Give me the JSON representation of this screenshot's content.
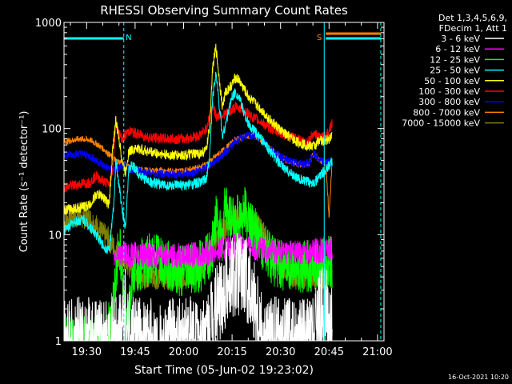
{
  "chart_data": {
    "type": "line",
    "title": "RHESSI Observing Summary Count Rates",
    "xlabel": "Start Time (05-Jun-02 19:23:02)",
    "ylabel": "Count Rate (s⁻¹ detector⁻¹)",
    "yscale": "log",
    "ylim": [
      1,
      1000
    ],
    "xlim_minutes": [
      23,
      122
    ],
    "x_tick_labels": [
      "19:30",
      "19:45",
      "20:00",
      "20:15",
      "20:30",
      "20:45",
      "21:00"
    ],
    "x_tick_minutes": [
      30,
      45,
      60,
      75,
      90,
      105,
      120
    ],
    "y_tick_labels": [
      "1",
      "10",
      "100",
      "1000"
    ],
    "y_tick_values": [
      1,
      10,
      100,
      1000
    ],
    "legend_header": [
      "Det 1,3,4,5,6,9,",
      "FDecim 1, Att 1"
    ],
    "legend_placement": "right",
    "footer_date": "16-Oct-2021 10:20",
    "flags": {
      "night_bars_cyan": [
        {
          "from": 23,
          "to": 41.5
        },
        {
          "from": 104,
          "to": 121
        }
      ],
      "saa_bar_orange": {
        "from": 104,
        "to": 121
      },
      "flag_labels": [
        {
          "text": "N",
          "minute": 43
        },
        {
          "text": "S",
          "minute": 102
        }
      ],
      "dashed_lines_cyan_minutes": [
        41.5,
        121
      ],
      "solid_lines_cyan_minutes": [
        103.5
      ]
    },
    "series": [
      {
        "name": "3 - 6 keV",
        "color": "#ffffff",
        "points": [
          [
            23,
            1
          ],
          [
            38,
            1
          ],
          [
            40,
            1
          ],
          [
            41,
            1.5
          ],
          [
            42,
            2
          ],
          [
            43,
            1.3
          ],
          [
            44,
            1
          ],
          [
            55,
            1
          ],
          [
            67,
            1
          ],
          [
            69,
            1.6
          ],
          [
            71,
            2.5
          ],
          [
            73,
            3.5
          ],
          [
            75,
            4
          ],
          [
            77,
            4.5
          ],
          [
            79,
            4
          ],
          [
            81,
            3
          ],
          [
            83,
            2
          ],
          [
            85,
            1
          ],
          [
            100,
            1
          ],
          [
            101,
            1.3
          ],
          [
            102,
            1.8
          ],
          [
            104,
            2
          ],
          [
            105,
            1.6
          ],
          [
            106,
            1.2
          ]
        ]
      },
      {
        "name": "6 - 12 keV",
        "color": "#ff00ff",
        "points": [
          [
            38.5,
            6
          ],
          [
            40,
            6.5
          ],
          [
            45,
            6.5
          ],
          [
            55,
            6.3
          ],
          [
            65,
            6.5
          ],
          [
            70,
            7
          ],
          [
            73,
            7.5
          ],
          [
            78,
            8
          ],
          [
            82,
            7.5
          ],
          [
            88,
            7
          ],
          [
            92,
            7
          ],
          [
            96,
            6.8
          ],
          [
            100,
            7
          ],
          [
            104,
            7.2
          ],
          [
            106,
            7.5
          ]
        ]
      },
      {
        "name": "12 - 25 keV",
        "color": "#00ff00",
        "points": [
          [
            23,
            1
          ],
          [
            34,
            1
          ],
          [
            36,
            1
          ],
          [
            38,
            2
          ],
          [
            40,
            8
          ],
          [
            41,
            5
          ],
          [
            42,
            1
          ],
          [
            45,
            5
          ],
          [
            50,
            6
          ],
          [
            55,
            5
          ],
          [
            60,
            4.5
          ],
          [
            65,
            5
          ],
          [
            68,
            6
          ],
          [
            69,
            8
          ],
          [
            70,
            15
          ],
          [
            71,
            11
          ],
          [
            72,
            10
          ],
          [
            73,
            19
          ],
          [
            74,
            13
          ],
          [
            76,
            13
          ],
          [
            77,
            15
          ],
          [
            79,
            16
          ],
          [
            81,
            12
          ],
          [
            84,
            8
          ],
          [
            87,
            6
          ],
          [
            90,
            5
          ],
          [
            95,
            5
          ],
          [
            100,
            5
          ],
          [
            103,
            5.5
          ],
          [
            106,
            5.5
          ]
        ]
      },
      {
        "name": "25 - 50 keV",
        "color": "#00ffff",
        "points": [
          [
            23,
            11
          ],
          [
            26,
            13
          ],
          [
            29,
            14
          ],
          [
            31,
            12
          ],
          [
            33,
            10
          ],
          [
            35,
            8
          ],
          [
            37,
            7
          ],
          [
            38.5,
            20
          ],
          [
            39,
            50
          ],
          [
            40,
            30
          ],
          [
            41,
            17
          ],
          [
            42,
            12
          ],
          [
            43,
            40
          ],
          [
            44,
            45
          ],
          [
            47,
            35
          ],
          [
            50,
            31
          ],
          [
            55,
            29
          ],
          [
            60,
            29
          ],
          [
            65,
            31
          ],
          [
            67,
            33
          ],
          [
            68,
            50
          ],
          [
            69,
            200
          ],
          [
            70,
            340
          ],
          [
            71,
            170
          ],
          [
            72,
            85
          ],
          [
            73,
            110
          ],
          [
            74,
            150
          ],
          [
            75,
            200
          ],
          [
            76,
            220
          ],
          [
            77,
            200
          ],
          [
            80,
            110
          ],
          [
            84,
            80
          ],
          [
            87,
            60
          ],
          [
            90,
            45
          ],
          [
            93,
            38
          ],
          [
            96,
            33
          ],
          [
            99,
            31
          ],
          [
            101,
            32
          ],
          [
            102,
            35
          ],
          [
            103,
            38
          ],
          [
            105,
            45
          ],
          [
            106,
            50
          ]
        ]
      },
      {
        "name": "50 - 100 keV",
        "color": "#ffff00",
        "points": [
          [
            23,
            17
          ],
          [
            28,
            18
          ],
          [
            31,
            19
          ],
          [
            33,
            24
          ],
          [
            35,
            23
          ],
          [
            37,
            19
          ],
          [
            38,
            60
          ],
          [
            39,
            120
          ],
          [
            40,
            80
          ],
          [
            41,
            50
          ],
          [
            42,
            38
          ],
          [
            43,
            60
          ],
          [
            45,
            65
          ],
          [
            50,
            60
          ],
          [
            55,
            56
          ],
          [
            60,
            56
          ],
          [
            65,
            58
          ],
          [
            67,
            62
          ],
          [
            68,
            100
          ],
          [
            69,
            380
          ],
          [
            70,
            580
          ],
          [
            71,
            300
          ],
          [
            72,
            160
          ],
          [
            73,
            220
          ],
          [
            75,
            260
          ],
          [
            76,
            300
          ],
          [
            77,
            290
          ],
          [
            80,
            200
          ],
          [
            84,
            150
          ],
          [
            88,
            110
          ],
          [
            91,
            90
          ],
          [
            95,
            75
          ],
          [
            99,
            68
          ],
          [
            101,
            70
          ],
          [
            102,
            80
          ],
          [
            103,
            75
          ],
          [
            105,
            80
          ],
          [
            106,
            90
          ]
        ]
      },
      {
        "name": "100 - 300 keV",
        "color": "#ff0000",
        "points": [
          [
            23,
            28
          ],
          [
            28,
            30
          ],
          [
            31,
            31
          ],
          [
            33,
            36
          ],
          [
            35,
            32
          ],
          [
            37,
            30
          ],
          [
            38,
            40
          ],
          [
            39,
            110
          ],
          [
            40,
            90
          ],
          [
            41,
            80
          ],
          [
            43,
            95
          ],
          [
            46,
            88
          ],
          [
            50,
            82
          ],
          [
            55,
            80
          ],
          [
            60,
            80
          ],
          [
            65,
            86
          ],
          [
            67,
            100
          ],
          [
            68,
            130
          ],
          [
            69,
            170
          ],
          [
            70,
            130
          ],
          [
            72,
            135
          ],
          [
            74,
            140
          ],
          [
            76,
            160
          ],
          [
            78,
            155
          ],
          [
            81,
            130
          ],
          [
            84,
            115
          ],
          [
            87,
            100
          ],
          [
            91,
            88
          ],
          [
            95,
            80
          ],
          [
            98,
            75
          ],
          [
            99,
            78
          ],
          [
            100,
            90
          ],
          [
            101,
            88
          ],
          [
            102,
            80
          ],
          [
            104,
            85
          ],
          [
            106,
            115
          ]
        ]
      },
      {
        "name": "300 - 800 keV",
        "color": "#0000ff",
        "points": [
          [
            23,
            56
          ],
          [
            28,
            58
          ],
          [
            31,
            55
          ],
          [
            33,
            50
          ],
          [
            35,
            45
          ],
          [
            37,
            42
          ],
          [
            39,
            40
          ],
          [
            41,
            45
          ],
          [
            43,
            42
          ],
          [
            46,
            40
          ],
          [
            50,
            38
          ],
          [
            55,
            37
          ],
          [
            60,
            37
          ],
          [
            65,
            40
          ],
          [
            68,
            45
          ],
          [
            70,
            50
          ],
          [
            73,
            60
          ],
          [
            76,
            75
          ],
          [
            79,
            85
          ],
          [
            82,
            85
          ],
          [
            85,
            75
          ],
          [
            88,
            60
          ],
          [
            91,
            52
          ],
          [
            94,
            48
          ],
          [
            97,
            46
          ],
          [
            99,
            48
          ],
          [
            100,
            58
          ],
          [
            101,
            56
          ],
          [
            102,
            50
          ],
          [
            104,
            48
          ],
          [
            106,
            48
          ]
        ]
      },
      {
        "name": "800 - 7000 keV",
        "color": "#ff8000",
        "points": [
          [
            23,
            75
          ],
          [
            28,
            80
          ],
          [
            31,
            78
          ],
          [
            33,
            72
          ],
          [
            35,
            65
          ],
          [
            37,
            57
          ],
          [
            39,
            50
          ],
          [
            41,
            47
          ],
          [
            43,
            44
          ],
          [
            46,
            41
          ],
          [
            50,
            40
          ],
          [
            55,
            40
          ],
          [
            60,
            40
          ],
          [
            65,
            43
          ],
          [
            68,
            48
          ],
          [
            70,
            55
          ],
          [
            73,
            65
          ],
          [
            76,
            78
          ],
          [
            79,
            85
          ],
          [
            82,
            85
          ],
          [
            85,
            73
          ],
          [
            88,
            60
          ],
          [
            91,
            51
          ],
          [
            94,
            47
          ],
          [
            97,
            45
          ],
          [
            99,
            48
          ],
          [
            100,
            57
          ],
          [
            101,
            55
          ],
          [
            102,
            50
          ],
          [
            104,
            47
          ],
          [
            105,
            15
          ],
          [
            106,
            50
          ]
        ]
      },
      {
        "name": "7000 - 15000 keV",
        "color": "#808000",
        "points": [
          [
            23,
            13
          ],
          [
            26,
            15
          ],
          [
            29,
            15
          ],
          [
            31,
            14
          ],
          [
            33,
            12
          ],
          [
            35,
            10
          ],
          [
            37,
            9
          ],
          [
            39,
            7
          ],
          [
            41,
            6
          ],
          [
            43,
            5
          ],
          [
            46,
            4
          ],
          [
            50,
            4
          ],
          [
            55,
            4
          ],
          [
            60,
            4
          ],
          [
            64,
            4.5
          ],
          [
            67,
            6
          ],
          [
            70,
            9
          ],
          [
            73,
            12
          ],
          [
            76,
            14
          ],
          [
            79,
            15
          ],
          [
            82,
            13
          ],
          [
            85,
            10
          ],
          [
            88,
            7
          ],
          [
            91,
            5
          ],
          [
            94,
            4
          ],
          [
            97,
            4
          ],
          [
            100,
            4
          ],
          [
            103,
            4
          ],
          [
            106,
            4
          ]
        ]
      }
    ]
  }
}
